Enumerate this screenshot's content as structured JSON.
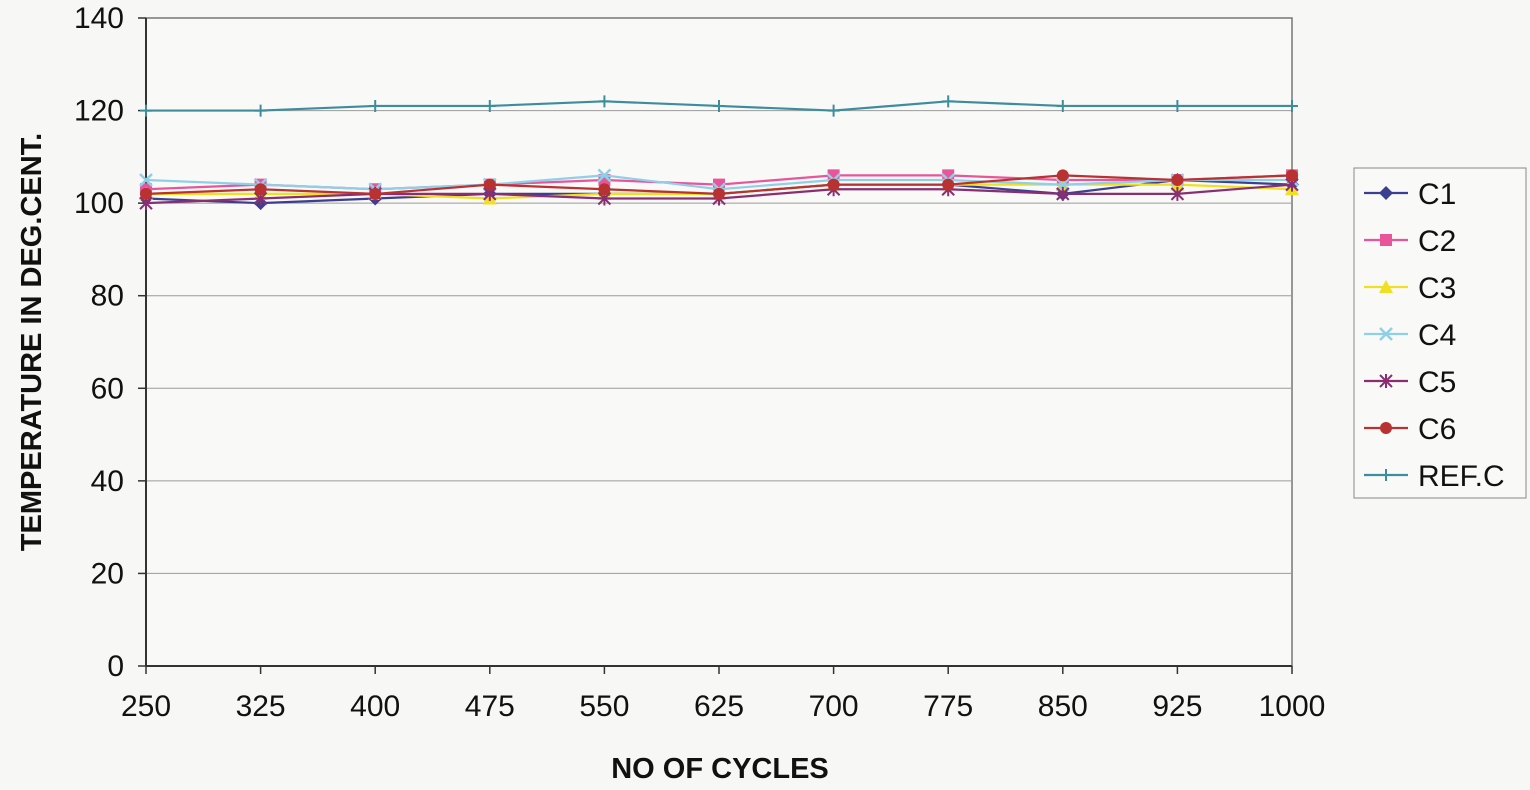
{
  "chart_data": {
    "type": "line",
    "title": "",
    "xlabel": "NO OF CYCLES",
    "ylabel": "TEMPERATURE IN DEG.CENT.",
    "categories": [
      "250",
      "325",
      "400",
      "475",
      "550",
      "625",
      "700",
      "775",
      "850",
      "925",
      "1000"
    ],
    "ylim": [
      0,
      140
    ],
    "yticks": [
      "0",
      "20",
      "40",
      "60",
      "80",
      "100",
      "120",
      "140"
    ],
    "grid": "horizontal",
    "legend_position": "right",
    "series": [
      {
        "name": "C1",
        "color": "#3b3f8f",
        "marker": "diamond",
        "values": [
          101,
          100,
          101,
          102,
          102,
          102,
          104,
          104,
          102,
          105,
          104
        ]
      },
      {
        "name": "C2",
        "color": "#e8559a",
        "marker": "square",
        "values": [
          103,
          104,
          103,
          104,
          105,
          104,
          106,
          106,
          105,
          105,
          106
        ]
      },
      {
        "name": "C3",
        "color": "#f0e020",
        "marker": "triangle",
        "values": [
          102,
          102,
          102,
          101,
          102,
          102,
          104,
          104,
          104,
          104,
          103
        ]
      },
      {
        "name": "C4",
        "color": "#8fd0e8",
        "marker": "x",
        "values": [
          105,
          104,
          103,
          104,
          106,
          103,
          105,
          105,
          104,
          105,
          105
        ]
      },
      {
        "name": "C5",
        "color": "#8a2e72",
        "marker": "star",
        "values": [
          100,
          101,
          102,
          102,
          101,
          101,
          103,
          103,
          102,
          102,
          104
        ]
      },
      {
        "name": "C6",
        "color": "#b83232",
        "marker": "circle",
        "values": [
          102,
          103,
          102,
          104,
          103,
          102,
          104,
          104,
          106,
          105,
          106
        ]
      },
      {
        "name": "REF.C",
        "color": "#3d8d9e",
        "marker": "plus",
        "values": [
          120,
          120,
          121,
          121,
          122,
          121,
          120,
          122,
          121,
          121,
          121
        ]
      }
    ]
  }
}
